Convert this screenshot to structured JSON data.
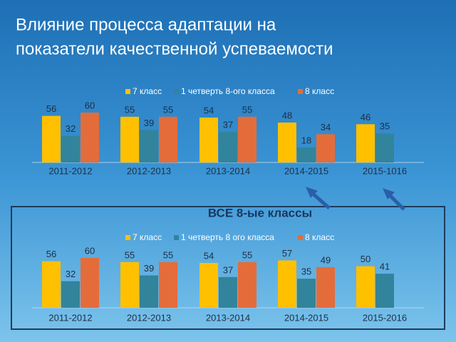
{
  "title": [
    "Влияние процесса адаптации на",
    "показатели качественной успеваемости"
  ],
  "chart_data": [
    {
      "type": "bar",
      "categories": [
        "2011-2012",
        "2012-2013",
        "2013-2014",
        "2014-2015",
        "2015-1016"
      ],
      "series": [
        {
          "name": "7 класс",
          "color": "#ffc000",
          "values": [
            56,
            55,
            54,
            48,
            46
          ]
        },
        {
          "name": "1 четверть 8-ого класса",
          "color": "#31849b",
          "values": [
            32,
            39,
            37,
            18,
            35
          ]
        },
        {
          "name": "8 класс",
          "color": "#e46c3a",
          "values": [
            60,
            55,
            55,
            34,
            null
          ]
        }
      ],
      "legend": "top"
    },
    {
      "type": "bar",
      "title": "ВСЕ 8-ые классы",
      "categories": [
        "2011-2012",
        "2012-2013",
        "2013-2014",
        "2014-2015",
        "2015-2016"
      ],
      "series": [
        {
          "name": "7 класс",
          "color": "#ffc000",
          "values": [
            56,
            55,
            54,
            57,
            50
          ]
        },
        {
          "name": "1 четверть 8 ого класса",
          "color": "#31849b",
          "values": [
            32,
            39,
            37,
            35,
            41
          ]
        },
        {
          "name": "8 класс",
          "color": "#e46c3a",
          "values": [
            60,
            55,
            55,
            49,
            null
          ]
        }
      ],
      "legend": "top"
    }
  ]
}
